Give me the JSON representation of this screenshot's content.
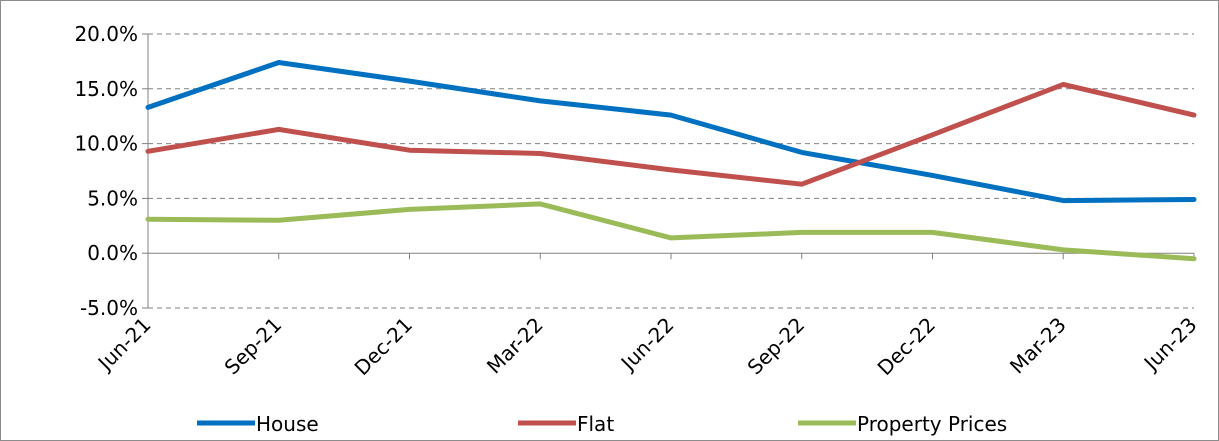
{
  "chart_data": {
    "type": "line",
    "title": "",
    "xlabel": "",
    "ylabel": "",
    "categories": [
      "Jun-21",
      "Sep-21",
      "Dec-21",
      "Mar-22",
      "Jun-22",
      "Sep-22",
      "Dec-22",
      "Mar-23",
      "Jun-23"
    ],
    "ylim": [
      -0.05,
      0.2
    ],
    "yticks": [
      -0.05,
      0.0,
      0.05,
      0.1,
      0.15,
      0.2
    ],
    "ytick_labels": [
      "-5.0%",
      "0.0%",
      "5.0%",
      "10.0%",
      "15.0%",
      "20.0%"
    ],
    "grid": "horizontal dashed",
    "legend_position": "bottom",
    "series": [
      {
        "name": "House",
        "color": "#0070c0",
        "values": [
          0.133,
          0.174,
          0.157,
          0.139,
          0.126,
          0.092,
          0.071,
          0.048,
          0.049
        ]
      },
      {
        "name": "Flat",
        "color": "#c0504d",
        "values": [
          0.093,
          0.113,
          0.094,
          0.091,
          0.076,
          0.063,
          0.108,
          0.154,
          0.126
        ]
      },
      {
        "name": "Property Prices",
        "color": "#9bbb59",
        "values": [
          0.031,
          0.03,
          0.04,
          0.045,
          0.014,
          0.019,
          0.019,
          0.003,
          -0.005
        ]
      }
    ]
  }
}
